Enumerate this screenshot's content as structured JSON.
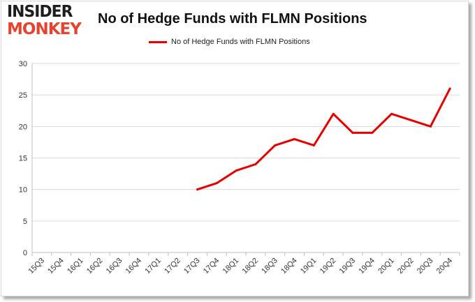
{
  "logo": {
    "line1": "INSIDER",
    "line2": "MONKEY"
  },
  "colors": {
    "series": "#e60000",
    "grid": "#d9d9d9",
    "logo_dark": "#1e1e1e",
    "logo_accent": "#e8432e"
  },
  "chart_data": {
    "type": "line",
    "title": "No of Hedge Funds with FLMN Positions",
    "xlabel": "",
    "ylabel": "",
    "ylim": [
      0,
      30
    ],
    "yticks": [
      0,
      5,
      10,
      15,
      20,
      25,
      30
    ],
    "grid": true,
    "legend_position": "top-center",
    "categories": [
      "15Q3",
      "15Q4",
      "16Q1",
      "16Q2",
      "16Q3",
      "16Q4",
      "17Q1",
      "17Q2",
      "17Q3",
      "17Q4",
      "18Q1",
      "18Q2",
      "18Q3",
      "18Q4",
      "19Q1",
      "19Q2",
      "19Q3",
      "19Q4",
      "20Q1",
      "20Q2",
      "20Q3",
      "20Q4"
    ],
    "series": [
      {
        "name": "No of Hedge Funds with FLMN Positions",
        "values": [
          null,
          null,
          null,
          null,
          null,
          null,
          null,
          null,
          10,
          11,
          13,
          14,
          17,
          18,
          17,
          22,
          19,
          19,
          22,
          21,
          20,
          26
        ]
      }
    ]
  }
}
